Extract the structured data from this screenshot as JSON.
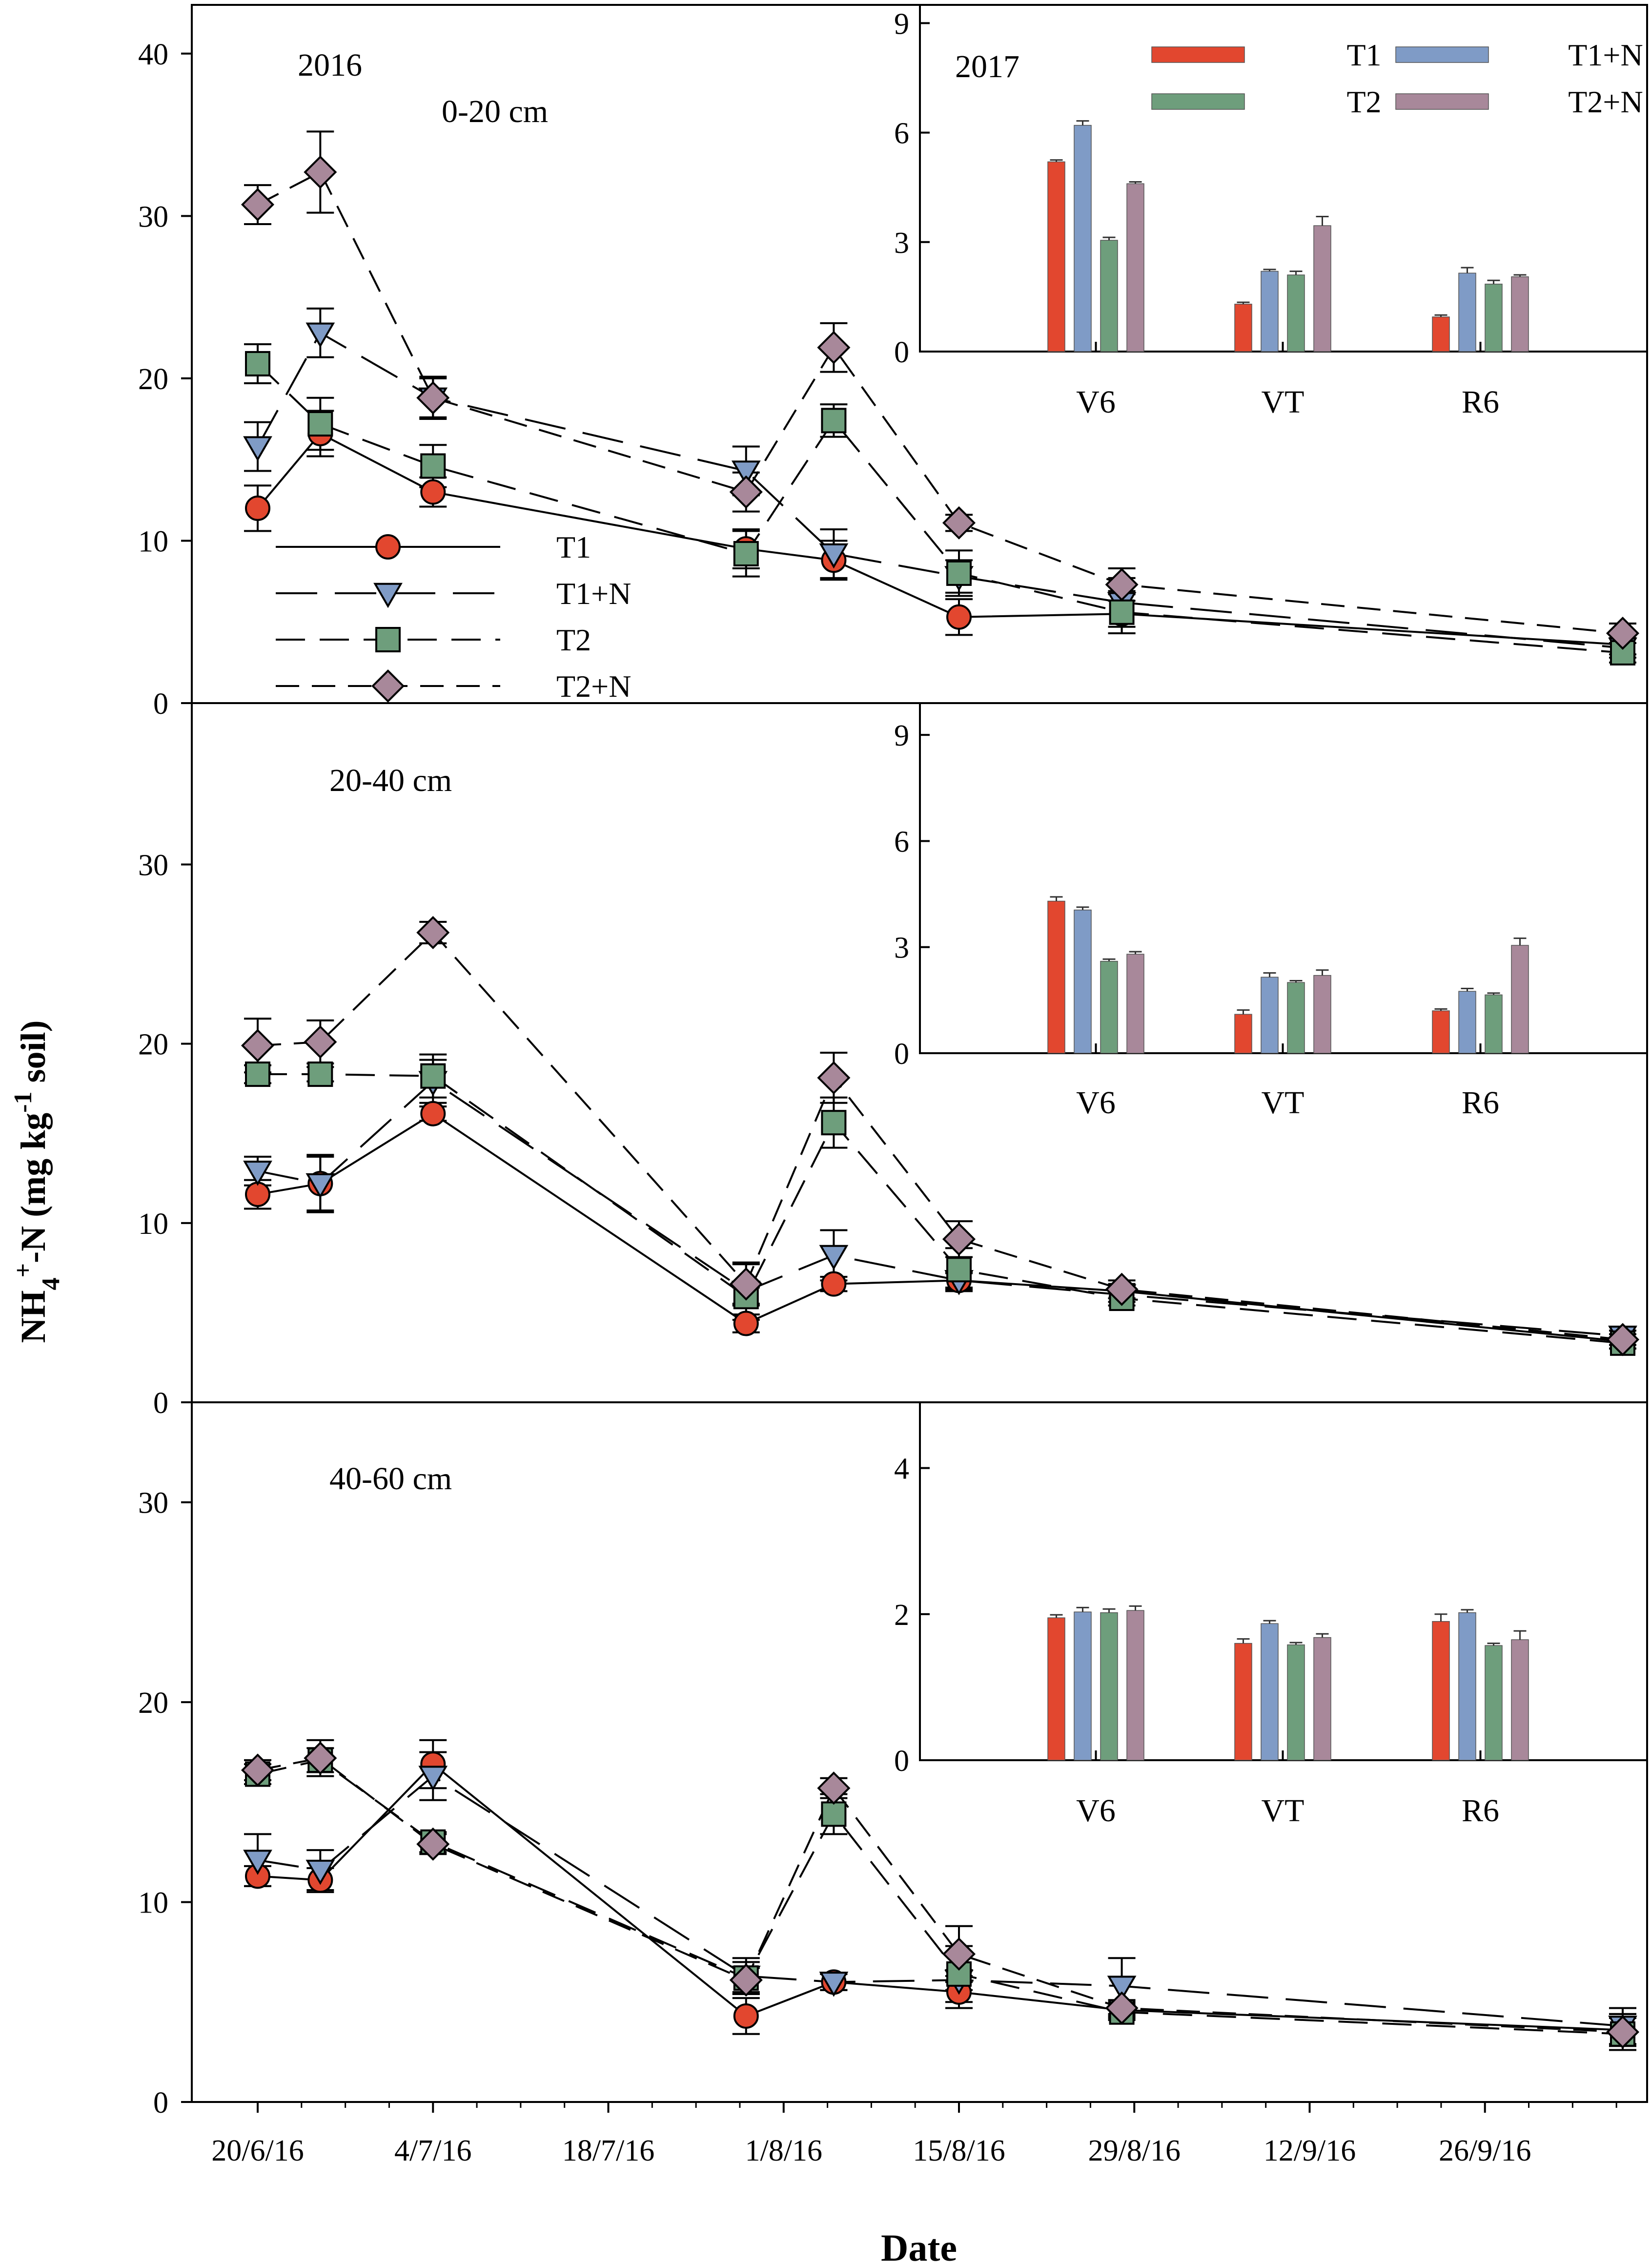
{
  "figure": {
    "ylabel_main": "NH",
    "ylabel_sub": "4",
    "ylabel_sup": "+",
    "ylabel_mid": "-N (mg kg",
    "ylabel_sup2": "-1",
    "ylabel_end": " soil)",
    "xlabel": "Date"
  },
  "colors": {
    "T1": "#e2472f",
    "T1+N": "#7f9bc6",
    "T2": "#6e9e7c",
    "T2+N": "#a8889a"
  },
  "chart_data": [
    {
      "type": "line",
      "panel": "top",
      "year_label": "2016",
      "depth_label": "0-20 cm",
      "ylim": [
        0,
        43
      ],
      "yticks": [
        0,
        10,
        20,
        30,
        40
      ],
      "x_dates": [
        "20/6/16",
        "26/6/16",
        "5/7/16",
        "29/7/16",
        "5/8/16",
        "15/8/16",
        "28/8/16",
        "8/10/16"
      ],
      "x_days": [
        0,
        5,
        14,
        39,
        46,
        56,
        69,
        109
      ],
      "series": [
        {
          "name": "T1",
          "values": [
            12,
            16.6,
            13,
            9.5,
            8.8,
            5.3,
            5.5,
            3.6
          ],
          "errors": [
            1.4,
            1.4,
            0.9,
            1.2,
            1.2,
            1.1,
            1.2,
            0.6
          ]
        },
        {
          "name": "T1+N",
          "values": [
            15.8,
            22.8,
            18.8,
            14.3,
            9.2,
            7.8,
            6.2,
            3.4
          ],
          "errors": [
            1.5,
            1.5,
            1.2,
            1.5,
            1.5,
            1.0,
            1.5,
            0.6
          ]
        },
        {
          "name": "T2",
          "values": [
            20.9,
            17.2,
            14.6,
            9.2,
            17.4,
            8,
            5.6,
            3.1
          ],
          "errors": [
            1.2,
            1.6,
            1.3,
            1.4,
            1.0,
            1.4,
            1.3,
            0.6
          ]
        },
        {
          "name": "T2+N",
          "values": [
            30.7,
            32.7,
            18.8,
            13,
            21.9,
            11.1,
            7.3,
            4.3
          ],
          "errors": [
            1.2,
            2.5,
            1.3,
            1.2,
            1.5,
            0.5,
            1.0,
            0.6
          ]
        }
      ],
      "legend": [
        "T1",
        "T1+N",
        "T2",
        "T2+N"
      ]
    },
    {
      "type": "line",
      "panel": "middle",
      "depth_label": "20-40 cm",
      "ylim": [
        0,
        39
      ],
      "yticks": [
        0,
        10,
        20,
        30
      ],
      "x_dates": [
        "20/6/16",
        "26/6/16",
        "5/7/16",
        "29/7/16",
        "5/8/16",
        "15/8/16",
        "28/8/16",
        "8/10/16"
      ],
      "x_days": [
        0,
        5,
        14,
        39,
        46,
        56,
        69,
        109
      ],
      "series": [
        {
          "name": "T1",
          "values": [
            11.6,
            12.2,
            16.1,
            4.4,
            6.6,
            6.8,
            6.2,
            3.4
          ],
          "errors": [
            0.8,
            1.5,
            0.4,
            0.5,
            0.4,
            0.4,
            0.4,
            0.4
          ]
        },
        {
          "name": "T1+N",
          "values": [
            12.9,
            12.2,
            17.9,
            6.2,
            8.2,
            6.8,
            6.0,
            3.7
          ],
          "errors": [
            0.8,
            1.6,
            1.2,
            1.6,
            1.4,
            0.5,
            0.4,
            0.5
          ]
        },
        {
          "name": "T2",
          "values": [
            18.3,
            18.3,
            18.2,
            5.9,
            15.6,
            7.4,
            5.8,
            3.3
          ],
          "errors": [
            0.5,
            0.4,
            1.2,
            0.5,
            1.4,
            1.2,
            0.4,
            0.3
          ]
        },
        {
          "name": "T2+N",
          "values": [
            19.9,
            20.1,
            26.2,
            6.6,
            18.1,
            9.1,
            6.3,
            3.5
          ],
          "errors": [
            1.5,
            1.2,
            0.6,
            1.1,
            1.4,
            1.0,
            0.5,
            0.5
          ]
        }
      ]
    },
    {
      "type": "line",
      "panel": "bottom",
      "depth_label": "40-60 cm",
      "ylim": [
        0,
        35
      ],
      "yticks": [
        0,
        10,
        20,
        30
      ],
      "x_dates": [
        "20/6/16",
        "26/6/16",
        "5/7/16",
        "29/7/16",
        "5/8/16",
        "15/8/16",
        "28/8/16",
        "8/10/16"
      ],
      "x_days": [
        0,
        5,
        14,
        39,
        46,
        56,
        69,
        109
      ],
      "xtick_labels": [
        "20/6/16",
        "4/7/16",
        "18/7/16",
        "1/8/16",
        "15/8/16",
        "29/8/16",
        "12/9/16",
        "26/9/16"
      ],
      "xtick_days": [
        0,
        14,
        28,
        42,
        56,
        70,
        84,
        98
      ],
      "series": [
        {
          "name": "T1",
          "values": [
            11.3,
            11.1,
            16.9,
            4.3,
            6.0,
            5.5,
            4.6,
            3.6
          ],
          "errors": [
            0.5,
            0.6,
            1.2,
            0.9,
            0.4,
            0.8,
            0.4,
            0.8
          ]
        },
        {
          "name": "T1+N",
          "values": [
            12.1,
            11.6,
            16.3,
            6.3,
            6.0,
            6.1,
            5.8,
            3.8
          ],
          "errors": [
            1.3,
            1.0,
            1.2,
            0.9,
            0.4,
            0.5,
            1.4,
            0.9
          ]
        },
        {
          "name": "T2",
          "values": [
            16.4,
            17.1,
            13.0,
            6.2,
            14.4,
            6.4,
            4.5,
            3.4
          ],
          "errors": [
            0.5,
            0.6,
            0.5,
            0.8,
            1.0,
            1.4,
            0.4,
            0.8
          ]
        },
        {
          "name": "T2+N",
          "values": [
            16.6,
            17.2,
            12.9,
            6.1,
            15.7,
            7.4,
            4.7,
            3.5
          ],
          "errors": [
            0.5,
            0.9,
            0.5,
            0.6,
            0.5,
            1.4,
            0.4,
            0.9
          ]
        }
      ]
    },
    {
      "type": "bar",
      "panel": "top-inset",
      "year_label": "2017",
      "categories": [
        "V6",
        "VT",
        "R6"
      ],
      "ylim": [
        0,
        9.5
      ],
      "yticks": [
        0,
        3,
        6,
        9
      ],
      "series": [
        {
          "name": "T1",
          "values": [
            5.2,
            1.3,
            0.95
          ],
          "errors": [
            0.05,
            0.05,
            0.05
          ]
        },
        {
          "name": "T1+N",
          "values": [
            6.2,
            2.2,
            2.15
          ],
          "errors": [
            0.12,
            0.05,
            0.15
          ]
        },
        {
          "name": "T2",
          "values": [
            3.05,
            2.1,
            1.85
          ],
          "errors": [
            0.08,
            0.1,
            0.1
          ]
        },
        {
          "name": "T2+N",
          "values": [
            4.6,
            3.45,
            2.05
          ],
          "errors": [
            0.05,
            0.25,
            0.05
          ]
        }
      ],
      "legend": [
        "T1",
        "T1+N",
        "T2",
        "T2+N"
      ]
    },
    {
      "type": "bar",
      "panel": "middle-inset",
      "categories": [
        "V6",
        "VT",
        "R6"
      ],
      "ylim": [
        0,
        9.9
      ],
      "yticks": [
        0,
        3,
        6,
        9
      ],
      "series": [
        {
          "name": "T1",
          "values": [
            4.3,
            1.1,
            1.2
          ],
          "errors": [
            0.12,
            0.12,
            0.05
          ]
        },
        {
          "name": "T1+N",
          "values": [
            4.05,
            2.15,
            1.75
          ],
          "errors": [
            0.08,
            0.12,
            0.08
          ]
        },
        {
          "name": "T2",
          "values": [
            2.6,
            2.0,
            1.65
          ],
          "errors": [
            0.06,
            0.05,
            0.05
          ]
        },
        {
          "name": "T2+N",
          "values": [
            2.8,
            2.2,
            3.05
          ],
          "errors": [
            0.07,
            0.15,
            0.2
          ]
        }
      ]
    },
    {
      "type": "bar",
      "panel": "bottom-inset",
      "categories": [
        "V6",
        "VT",
        "R6"
      ],
      "ylim": [
        0,
        4.9
      ],
      "yticks": [
        0,
        2,
        4
      ],
      "series": [
        {
          "name": "T1",
          "values": [
            1.95,
            1.6,
            1.9
          ],
          "errors": [
            0.04,
            0.06,
            0.1
          ]
        },
        {
          "name": "T1+N",
          "values": [
            2.03,
            1.87,
            2.02
          ],
          "errors": [
            0.06,
            0.04,
            0.04
          ]
        },
        {
          "name": "T2",
          "values": [
            2.02,
            1.58,
            1.57
          ],
          "errors": [
            0.05,
            0.03,
            0.03
          ]
        },
        {
          "name": "T2+N",
          "values": [
            2.05,
            1.68,
            1.65
          ],
          "errors": [
            0.06,
            0.05,
            0.12
          ]
        }
      ]
    }
  ]
}
